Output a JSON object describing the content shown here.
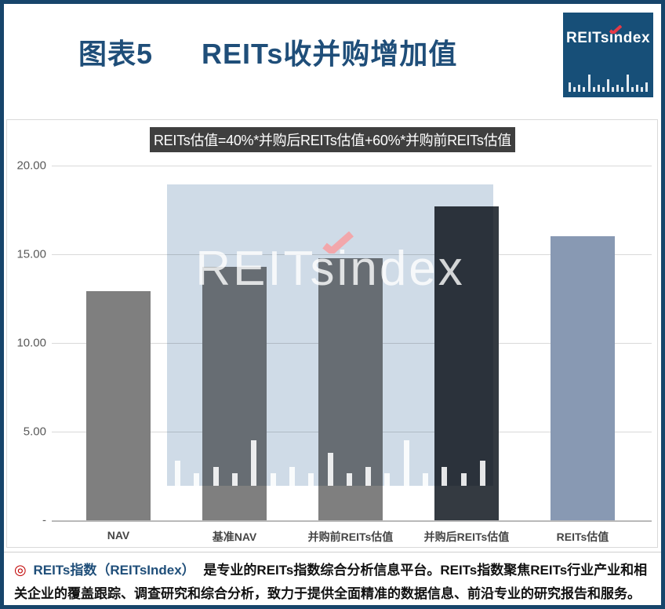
{
  "page": {
    "title_label": "图表5",
    "title": "REITs收并购增加值"
  },
  "logo": {
    "brand": "REITsindex"
  },
  "watermark": {
    "brand": "REITsindex"
  },
  "chart_data": {
    "type": "bar",
    "title": "REITs收并购增加值",
    "categories": [
      "NAV",
      "基准NAV",
      "并购前REITs估值",
      "并购后REITs估值",
      "REITs估值"
    ],
    "values": [
      12.9,
      14.3,
      14.8,
      17.7,
      16.0
    ],
    "bar_colors": [
      "#7f7f7f",
      "#7f7f7f",
      "#7f7f7f",
      "#343a41",
      "#8899b3"
    ],
    "annotation": "REITs估值=40%*并购后REITs估值+60%*并购前REITs估值",
    "xlabel": "",
    "ylabel": "",
    "ylim": [
      0,
      20
    ],
    "yticks": [
      {
        "value": 0,
        "label": "-"
      },
      {
        "value": 5,
        "label": "5.00"
      },
      {
        "value": 10,
        "label": "10.00"
      },
      {
        "value": 15,
        "label": "15.00"
      },
      {
        "value": 20,
        "label": "20.00"
      }
    ],
    "grid": "horizontal",
    "legend": "none"
  },
  "footer": {
    "bullet": "◎",
    "brand": "REITs指数（REITsIndex）",
    "text": "是专业的REITs指数综合分析信息平台。REITs指数聚焦REITs行业产业和相关企业的覆盖跟踪、调查研究和综合分析，致力于提供全面精准的数据信息、前沿专业的研究报告和服务。"
  },
  "colors": {
    "navy": "#1f4e79",
    "page_border": "#17456b",
    "logo_bg": "#174f78",
    "watermark_bg": "#cfdbe7",
    "annotation_bg": "#3f3f3f",
    "grid": "#d9d9d9",
    "axis_text": "#595959",
    "accent_red": "#e63946",
    "accent_pink": "#f2a7ab"
  }
}
